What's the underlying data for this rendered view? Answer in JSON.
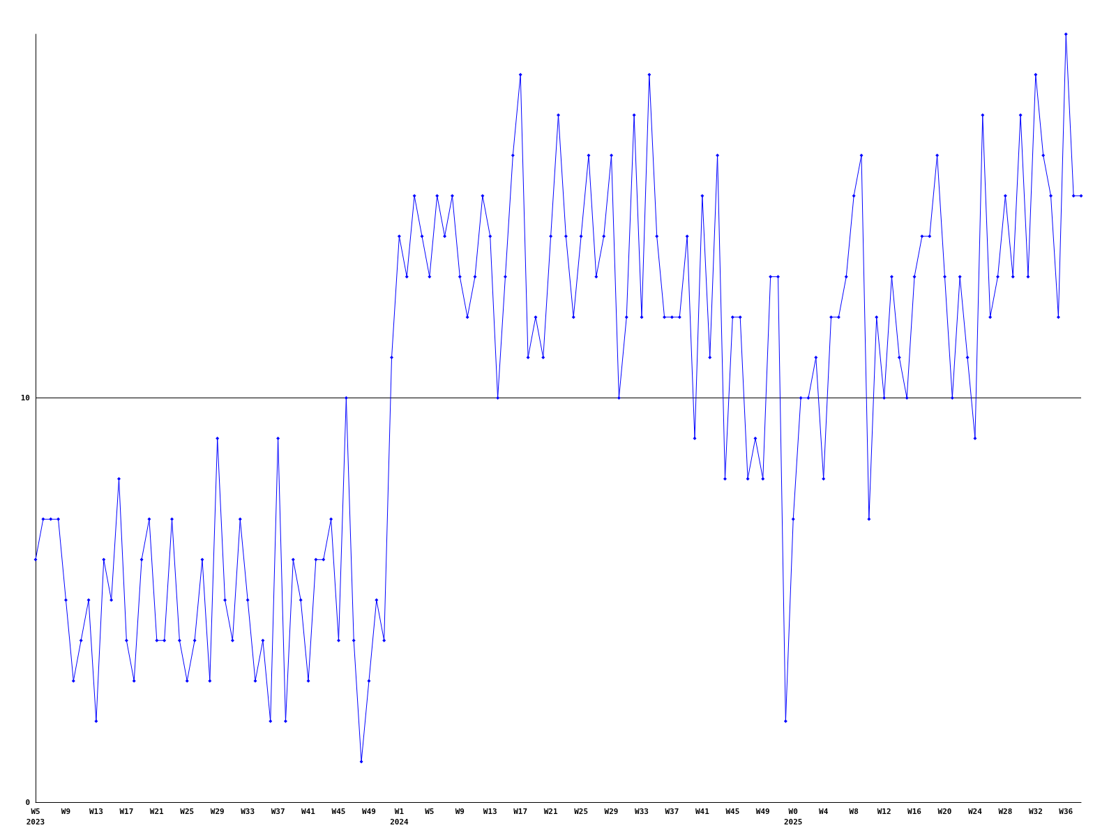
{
  "chart_data": {
    "type": "line",
    "categories": [
      "W5\n2023",
      null,
      null,
      null,
      "W9",
      null,
      null,
      null,
      "W13",
      null,
      null,
      null,
      "W17",
      null,
      null,
      null,
      "W21",
      null,
      null,
      null,
      "W25",
      null,
      null,
      null,
      "W29",
      null,
      null,
      null,
      "W33",
      null,
      null,
      null,
      "W37",
      null,
      null,
      null,
      "W41",
      null,
      null,
      null,
      "W45",
      null,
      null,
      null,
      "W49",
      null,
      null,
      null,
      "W1\n2024",
      null,
      null,
      null,
      "W5",
      null,
      null,
      null,
      "W9",
      null,
      null,
      null,
      "W13",
      null,
      null,
      null,
      "W17",
      null,
      null,
      null,
      "W21",
      null,
      null,
      null,
      "W25",
      null,
      null,
      null,
      "W29",
      null,
      null,
      null,
      "W33",
      null,
      null,
      null,
      "W37",
      null,
      null,
      null,
      "W41",
      null,
      null,
      null,
      "W45",
      null,
      null,
      null,
      "W49",
      null,
      null,
      null,
      "W0\n2025",
      null,
      null,
      null,
      "W4",
      null,
      null,
      null,
      "W8",
      null,
      null,
      null,
      "W12",
      null,
      null,
      null,
      "W16",
      null,
      null,
      null,
      "W20",
      null,
      null,
      null,
      "W24",
      null,
      null,
      null,
      "W28",
      null,
      null,
      null,
      "W32",
      null,
      null,
      null,
      "W36",
      null,
      null
    ],
    "series": [
      {
        "color": "#0000ff",
        "values": [
          6,
          7,
          7,
          7,
          5,
          3,
          4,
          5,
          2,
          6,
          5,
          8,
          4,
          3,
          6,
          7,
          4,
          4,
          7,
          4,
          3,
          4,
          6,
          3,
          9,
          5,
          4,
          7,
          5,
          3,
          4,
          2,
          9,
          2,
          6,
          5,
          3,
          6,
          6,
          7,
          4,
          10,
          4,
          1,
          3,
          5,
          4,
          11,
          14,
          13,
          15,
          14,
          13,
          15,
          14,
          15,
          13,
          12,
          13,
          15,
          14,
          10,
          13,
          16,
          18,
          11,
          12,
          11,
          14,
          17,
          14,
          12,
          14,
          16,
          13,
          14,
          16,
          10,
          12,
          17,
          12,
          18,
          14,
          12,
          12,
          12,
          14,
          9,
          15,
          11,
          16,
          8,
          12,
          12,
          8,
          9,
          8,
          13,
          13,
          2,
          7,
          10,
          10,
          11,
          8,
          12,
          12,
          13,
          15,
          16,
          7,
          12,
          10,
          13,
          11,
          10,
          13,
          14,
          14,
          16,
          13,
          10,
          13,
          11,
          9,
          17,
          12,
          13,
          15,
          13,
          17,
          13,
          18,
          16,
          15,
          12,
          19,
          15,
          15
        ]
      }
    ],
    "ylim": [
      0,
      19
    ],
    "yticks": [
      0,
      10
    ],
    "grid": "y",
    "marker": "diamond",
    "line_style": "solid"
  }
}
